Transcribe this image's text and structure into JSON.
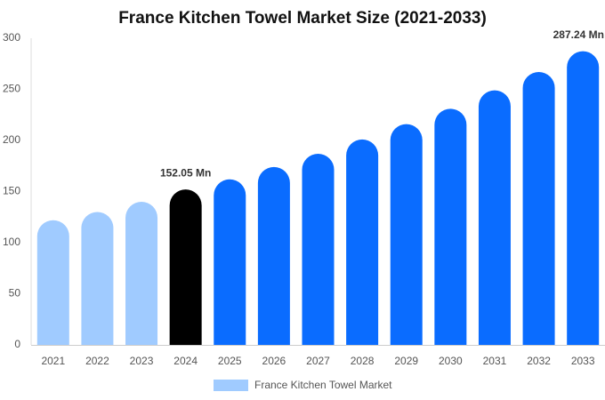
{
  "chart_data": {
    "type": "bar",
    "title": "France Kitchen Towel Market Size (2021-2033)",
    "categories": [
      "2021",
      "2022",
      "2023",
      "2024",
      "2025",
      "2026",
      "2027",
      "2028",
      "2029",
      "2030",
      "2031",
      "2032",
      "2033"
    ],
    "series": [
      {
        "name": "France Kitchen Towel Market",
        "color": "#a0cbff",
        "colors": [
          "#a0cbff",
          "#a0cbff",
          "#a0cbff",
          "#000000",
          "#0a6cff",
          "#0a6cff",
          "#0a6cff",
          "#0a6cff",
          "#0a6cff",
          "#0a6cff",
          "#0a6cff",
          "#0a6cff",
          "#0a6cff"
        ],
        "values": [
          122,
          130,
          140,
          152.05,
          162,
          174,
          187,
          201,
          216,
          231,
          249,
          267,
          287.24
        ],
        "value_labels": [
          null,
          null,
          null,
          "152.05 Mn",
          null,
          null,
          null,
          null,
          null,
          null,
          null,
          null,
          "287.24 Mn"
        ]
      }
    ],
    "ylim": [
      0,
      300
    ],
    "yticks": [
      0,
      50,
      100,
      150,
      200,
      250,
      300
    ],
    "grid": false
  }
}
